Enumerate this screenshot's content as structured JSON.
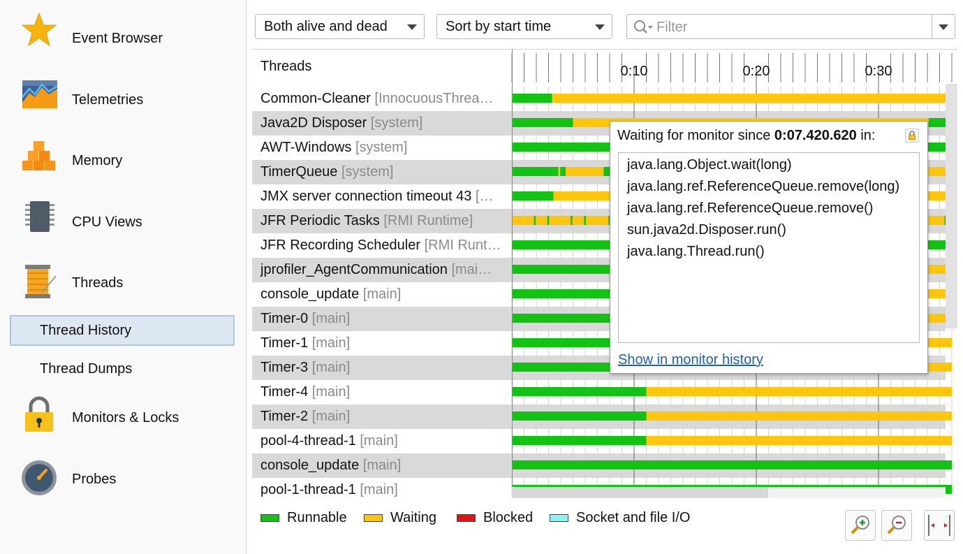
{
  "sidebar": {
    "items": [
      {
        "label": "Event Browser",
        "icon": "star-icon"
      },
      {
        "label": "Telemetries",
        "icon": "telemetry-chart-icon"
      },
      {
        "label": "Memory",
        "icon": "memory-cubes-icon"
      },
      {
        "label": "CPU Views",
        "icon": "cpu-chip-icon"
      },
      {
        "label": "Threads",
        "icon": "thread-spool-icon"
      }
    ],
    "thread_subitems": [
      {
        "label": "Thread History",
        "selected": true
      },
      {
        "label": "Thread Dumps",
        "selected": false
      }
    ],
    "items_after": [
      {
        "label": "Monitors & Locks",
        "icon": "padlock-icon"
      },
      {
        "label": "Probes",
        "icon": "gauge-icon"
      }
    ]
  },
  "toolbar": {
    "thread_filter": "Both alive and dead",
    "sort": "Sort by start time",
    "filter_placeholder": "Filter"
  },
  "timeline": {
    "header": "Threads",
    "ticks": [
      "0:10",
      "0:20",
      "0:30"
    ]
  },
  "threads": [
    {
      "name": "Common-Cleaner",
      "group": "[InnocuousThrea…"
    },
    {
      "name": "Java2D Disposer",
      "group": "[system]"
    },
    {
      "name": "AWT-Windows",
      "group": "[system]"
    },
    {
      "name": "TimerQueue",
      "group": "[system]"
    },
    {
      "name": "JMX server connection timeout 43",
      "group": "[…"
    },
    {
      "name": "JFR Periodic Tasks",
      "group": "[RMI Runtime]"
    },
    {
      "name": "JFR Recording Scheduler",
      "group": "[RMI Runt…"
    },
    {
      "name": "jprofiler_AgentCommunication",
      "group": "[mai…"
    },
    {
      "name": "console_update",
      "group": "[main]"
    },
    {
      "name": "Timer-0",
      "group": "[main]"
    },
    {
      "name": "Timer-1",
      "group": "[main]"
    },
    {
      "name": "Timer-3",
      "group": "[main]"
    },
    {
      "name": "Timer-4",
      "group": "[main]"
    },
    {
      "name": "Timer-2",
      "group": "[main]"
    },
    {
      "name": "pool-4-thread-1",
      "group": "[main]"
    },
    {
      "name": "console_update",
      "group": "[main]"
    },
    {
      "name": "pool-1-thread-1",
      "group": "[main]"
    }
  ],
  "legend": [
    {
      "label": "Runnable",
      "color": "#13c313"
    },
    {
      "label": "Waiting",
      "color": "#ffc60b"
    },
    {
      "label": "Blocked",
      "color": "#ee1111"
    },
    {
      "label": "Socket and file I/O",
      "color": "#8ef3f7"
    }
  ],
  "tooltip": {
    "prefix": "Waiting for monitor since ",
    "time": "0:07.420.620",
    "suffix": " in:",
    "stack": [
      "java.lang.Object.wait(long)",
      "java.lang.ref.ReferenceQueue.remove(long)",
      "java.lang.ref.ReferenceQueue.remove()",
      "sun.java2d.Disposer.run()",
      "java.lang.Thread.run()"
    ],
    "link": "Show in monitor history"
  },
  "colors": {
    "runnable": "#13c313",
    "waiting": "#ffc60b",
    "selection": "#dde8f3",
    "link": "#1f5fae"
  }
}
